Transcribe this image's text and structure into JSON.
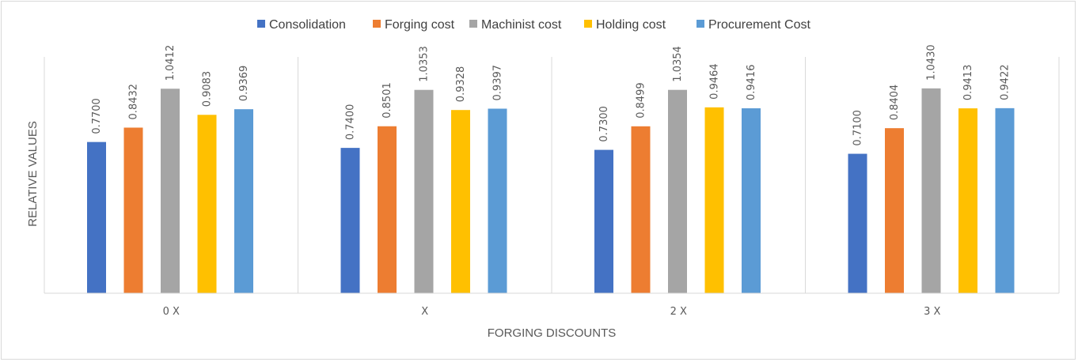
{
  "chart_data": {
    "type": "bar",
    "title": "",
    "xlabel": "FORGING DISCOUNTS",
    "ylabel": "RELATIVE VALUES",
    "ylim": [
      0,
      1.2
    ],
    "grid": false,
    "legend_position": "top",
    "categories": [
      "0 X",
      "X",
      "2 X",
      "3 X"
    ],
    "series": [
      {
        "name": "Consolidation",
        "color": "#4472C4",
        "values": [
          0.77,
          0.74,
          0.73,
          0.71
        ],
        "labels": [
          "0.7700",
          "0.7400",
          "0.7300",
          "0.7100"
        ]
      },
      {
        "name": "Forging cost",
        "color": "#ED7D31",
        "values": [
          0.8432,
          0.8501,
          0.8499,
          0.8404
        ],
        "labels": [
          "0.8432",
          "0.8501",
          "0.8499",
          "0.8404"
        ]
      },
      {
        "name": "Machinist cost",
        "color": "#A5A5A5",
        "values": [
          1.0412,
          1.0353,
          1.0354,
          1.043
        ],
        "labels": [
          "1.0412",
          "1.0353",
          "1.0354",
          "1.0430"
        ]
      },
      {
        "name": "Holding cost",
        "color": "#FFC000",
        "values": [
          0.9083,
          0.9328,
          0.9464,
          0.9413
        ],
        "labels": [
          "0.9083",
          "0.9328",
          "0.9464",
          "0.9413"
        ]
      },
      {
        "name": "Procurement Cost",
        "color": "#5B9BD5",
        "values": [
          0.9369,
          0.9397,
          0.9416,
          0.9422
        ],
        "labels": [
          "0.9369",
          "0.9397",
          "0.9416",
          "0.9422"
        ]
      }
    ]
  }
}
